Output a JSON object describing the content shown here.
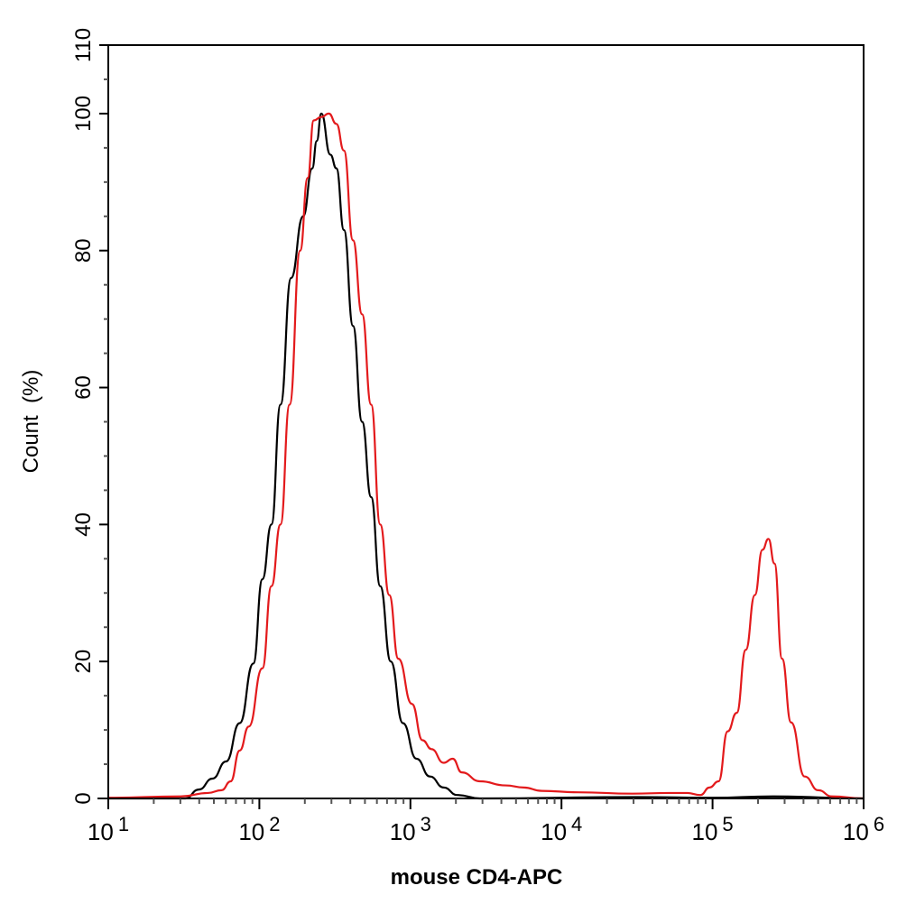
{
  "chart_data": {
    "type": "line",
    "title": "",
    "xlabel": "mouse CD4-APC",
    "ylabel": "Count  (%)",
    "xscale": "log",
    "xlim": [
      10,
      1000000
    ],
    "ylim": [
      0,
      110
    ],
    "x_tick_labels": [
      {
        "base": "10",
        "exp": "1"
      },
      {
        "base": "10",
        "exp": "2"
      },
      {
        "base": "10",
        "exp": "3"
      },
      {
        "base": "10",
        "exp": "4"
      },
      {
        "base": "10",
        "exp": "5"
      },
      {
        "base": "10",
        "exp": "6"
      }
    ],
    "y_ticks": [
      0,
      20,
      40,
      60,
      80,
      100,
      110
    ],
    "grid": false,
    "series": [
      {
        "color": "#000000",
        "log10_x": [
          1.0,
          1.51,
          1.6,
          1.69,
          1.78,
          1.87,
          1.96,
          2.02,
          2.08,
          2.14,
          2.21,
          2.29,
          2.35,
          2.38,
          2.41,
          2.47,
          2.51,
          2.56,
          2.62,
          2.68,
          2.74,
          2.8,
          2.87,
          2.95,
          3.04,
          3.13,
          3.22,
          3.31,
          3.46,
          4.5,
          5.0,
          5.4,
          6.0
        ],
        "y": [
          0,
          0,
          1.3,
          2.9,
          5.4,
          11,
          19.7,
          32,
          40,
          57.5,
          76,
          85,
          92,
          96,
          100,
          94,
          92,
          83,
          69,
          55,
          44,
          31,
          20,
          11,
          5.8,
          3.2,
          1.6,
          0.5,
          0,
          0.2,
          0.1,
          0.3,
          0
        ]
      },
      {
        "color": "#e31a1c",
        "log10_x": [
          1.0,
          1.48,
          1.66,
          1.75,
          1.81,
          1.87,
          1.93,
          2.02,
          2.08,
          2.14,
          2.2,
          2.27,
          2.32,
          2.36,
          2.41,
          2.46,
          2.51,
          2.56,
          2.62,
          2.68,
          2.74,
          2.8,
          2.86,
          2.92,
          3.01,
          3.08,
          3.14,
          3.22,
          3.28,
          3.34,
          3.46,
          3.63,
          3.75,
          3.87,
          4.11,
          4.47,
          4.71,
          4.83,
          4.92,
          4.98,
          5.04,
          5.1,
          5.16,
          5.22,
          5.28,
          5.33,
          5.37,
          5.41,
          5.46,
          5.52,
          5.61,
          5.7,
          5.79,
          6.0
        ],
        "y": [
          0.1,
          0.3,
          0.8,
          1.2,
          2.5,
          7,
          10.5,
          19,
          31,
          40,
          57.5,
          80,
          90.6,
          99,
          99.5,
          100,
          98.5,
          94.6,
          81.5,
          70.7,
          57.5,
          40,
          29.7,
          20.4,
          13.8,
          8.5,
          7.2,
          5.2,
          5.8,
          3.8,
          2.5,
          1.9,
          1.6,
          1.1,
          0.9,
          0.7,
          0.8,
          0.8,
          0.5,
          1.6,
          2.5,
          9.8,
          12.5,
          21.7,
          29.7,
          36.3,
          37.9,
          34.3,
          20.4,
          11.1,
          3.2,
          1.2,
          0.3,
          0
        ]
      }
    ]
  }
}
